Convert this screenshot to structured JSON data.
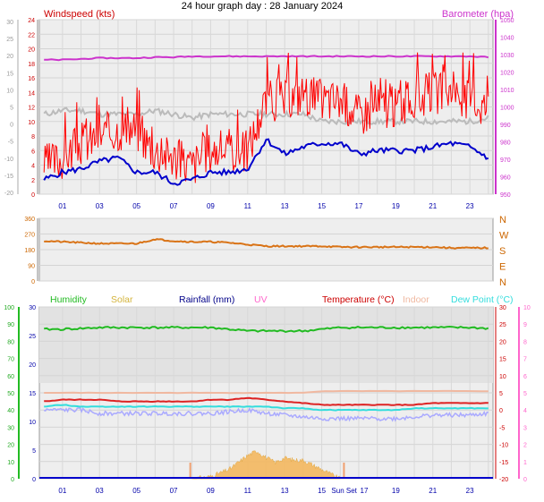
{
  "page_title": "24 hour graph day : 28 January 2024",
  "colors": {
    "wind": "#ff0000",
    "gust": "#ff0000",
    "avg_wind": "#0000cc",
    "barometer": "#cc33cc",
    "direction": "#d97316",
    "humidity": "#22bb22",
    "solar": "#d4b43c",
    "rain": "#0000cc",
    "uv": "#ff66cc",
    "temperature": "#dd2222",
    "indoor": "#f0b8a0",
    "dewpoint": "#33dddd",
    "windchill": "#aaaaff",
    "plot_bg": "#eeeeee",
    "solar_fill": "#f4b860"
  },
  "x_ticks": [
    "01",
    "03",
    "05",
    "07",
    "09",
    "11",
    "13",
    "15",
    "17",
    "19",
    "21",
    "23"
  ],
  "x_ticks_bottom": [
    "01",
    "03",
    "05",
    "07",
    "09",
    "11",
    "13",
    "15",
    "17",
    "19",
    "21",
    "23"
  ],
  "sun_labels": {
    "sunset": "Sun Set"
  },
  "chart_data": [
    {
      "id": "wind_baro",
      "type": "line",
      "title": "24 hour graph day : 28 January 2024",
      "left_label": "Windspeed (kts)",
      "right_label": "Barometer (hpa)",
      "outer_left_ticks": [
        "30",
        "25",
        "20",
        "15",
        "10",
        "5",
        "0",
        "-5",
        "-10",
        "-15",
        "-20"
      ],
      "left_ticks": [
        "24",
        "22",
        "20",
        "18",
        "16",
        "14",
        "12",
        "10",
        "8",
        "6",
        "4",
        "2",
        "0"
      ],
      "right_ticks": [
        "1050",
        "1040",
        "1030",
        "1020",
        "1010",
        "1000",
        "990",
        "980",
        "970",
        "960",
        "950"
      ],
      "ylim_left": [
        0,
        24
      ],
      "ylim_right": [
        950,
        1050
      ],
      "x": [
        0,
        1,
        2,
        3,
        4,
        5,
        6,
        7,
        8,
        9,
        10,
        11,
        12,
        13,
        14,
        15,
        16,
        17,
        18,
        19,
        20,
        21,
        22,
        23,
        24
      ],
      "series": [
        {
          "key": "gust",
          "values": [
            4,
            5,
            7,
            8,
            9,
            9,
            6,
            5,
            4,
            6,
            6,
            6,
            13,
            13,
            14,
            13,
            13,
            11,
            12,
            12,
            13,
            14,
            14,
            13,
            12
          ]
        },
        {
          "key": "avg_wind",
          "values": [
            2,
            3,
            3.5,
            4.5,
            5,
            3,
            3,
            1.5,
            2,
            3,
            3,
            3.5,
            7.5,
            5.5,
            6.5,
            7,
            7,
            5.5,
            6,
            6,
            6,
            6.5,
            7,
            6.5,
            5
          ]
        },
        {
          "key": "barometer",
          "values": [
            1027,
            1027,
            1027.5,
            1028,
            1028,
            1028,
            1028.5,
            1028.5,
            1029,
            1029,
            1029,
            1029,
            1029,
            1029,
            1029,
            1029,
            1029,
            1029,
            1029,
            1029,
            1029,
            1029,
            1029,
            1029,
            1028.5
          ]
        },
        {
          "key": "grey",
          "values": [
            11,
            11.5,
            11.5,
            11,
            11,
            11,
            11.5,
            11,
            10.5,
            11,
            11,
            11,
            11,
            11,
            11,
            10,
            10,
            10,
            10,
            10,
            10,
            10,
            10,
            10,
            10.5
          ]
        }
      ]
    },
    {
      "id": "direction",
      "type": "line",
      "left_ticks": [
        "360",
        "270",
        "180",
        "90",
        "0"
      ],
      "right_ticks": [
        "N",
        "W",
        "S",
        "E",
        "N"
      ],
      "ylim": [
        0,
        360
      ],
      "x": [
        0,
        1,
        2,
        3,
        4,
        5,
        6,
        7,
        8,
        9,
        10,
        11,
        12,
        13,
        14,
        15,
        16,
        17,
        18,
        19,
        20,
        21,
        22,
        23,
        24
      ],
      "series": [
        {
          "key": "direction",
          "values": [
            230,
            225,
            220,
            215,
            215,
            215,
            240,
            230,
            225,
            225,
            220,
            210,
            200,
            200,
            200,
            200,
            195,
            195,
            195,
            195,
            195,
            195,
            190,
            190,
            190
          ]
        }
      ]
    },
    {
      "id": "temp_hum",
      "type": "line",
      "legend": [
        "Humidity",
        "Solar",
        "Rainfall (mm)",
        "UV",
        "Temperature (°C)",
        "Indoor",
        "Dew Point (°C)"
      ],
      "hum_ticks": [
        "100",
        "90",
        "80",
        "70",
        "60",
        "50",
        "40",
        "30",
        "20",
        "10",
        "0"
      ],
      "rain_ticks": [
        "30",
        "25",
        "20",
        "15",
        "10",
        "5",
        "0"
      ],
      "temp_ticks": [
        "30",
        "25",
        "20",
        "15",
        "10",
        "5",
        "0",
        "-5",
        "-10",
        "-15",
        "-20"
      ],
      "uv_ticks": [
        "10",
        "9",
        "8",
        "7",
        "6",
        "5",
        "4",
        "3",
        "2",
        "1",
        "0"
      ],
      "ylim_temp": [
        -20,
        30
      ],
      "ylim_hum": [
        0,
        100
      ],
      "x": [
        0,
        1,
        2,
        3,
        4,
        5,
        6,
        7,
        8,
        9,
        10,
        11,
        12,
        13,
        14,
        15,
        16,
        17,
        18,
        19,
        20,
        21,
        22,
        23,
        24
      ],
      "series": [
        {
          "key": "humidity",
          "values": [
            87,
            87,
            87.5,
            88,
            88,
            88,
            88,
            88,
            88,
            88,
            87,
            86,
            86,
            86,
            86,
            87,
            88,
            88,
            88,
            88,
            88,
            88,
            88,
            88,
            87.5
          ]
        },
        {
          "key": "indoor",
          "values": [
            5,
            5,
            5,
            5,
            5,
            5,
            5,
            5,
            5,
            5,
            5,
            5,
            5,
            5,
            5,
            5.5,
            5.5,
            5.5,
            5.5,
            5.5,
            5.5,
            5.5,
            5.5,
            5.5,
            5.5
          ]
        },
        {
          "key": "temperature",
          "values": [
            2.5,
            3,
            3,
            3,
            2.5,
            2.5,
            2.5,
            2.5,
            2.5,
            3,
            3,
            3.5,
            3,
            2.5,
            2,
            1.5,
            1.5,
            1.5,
            1.5,
            1.5,
            1.5,
            2,
            2,
            2,
            2
          ]
        },
        {
          "key": "dewpoint",
          "values": [
            1,
            1.5,
            1,
            1,
            1,
            1,
            1,
            1,
            1,
            1,
            1,
            1,
            1,
            0.5,
            0.5,
            0,
            0,
            0,
            0,
            0,
            0.5,
            0.5,
            0.5,
            0.5,
            0.5
          ]
        },
        {
          "key": "windchill",
          "values": [
            0,
            0,
            0,
            -1,
            -1,
            -1,
            -1,
            -1,
            -1,
            -1,
            -0.5,
            0,
            -1,
            -1.5,
            -2,
            -2.5,
            -2.5,
            -2.5,
            -2.5,
            -2.5,
            -2,
            -1.5,
            -1.5,
            -1.5,
            -1
          ]
        }
      ],
      "solar_hours": [
        8,
        9,
        10,
        11,
        11.5,
        12,
        12.5,
        13,
        13.5,
        14,
        15,
        16
      ],
      "solar_values": [
        0,
        1,
        4,
        10,
        12,
        9,
        7,
        9,
        8,
        8,
        4,
        0
      ]
    }
  ]
}
